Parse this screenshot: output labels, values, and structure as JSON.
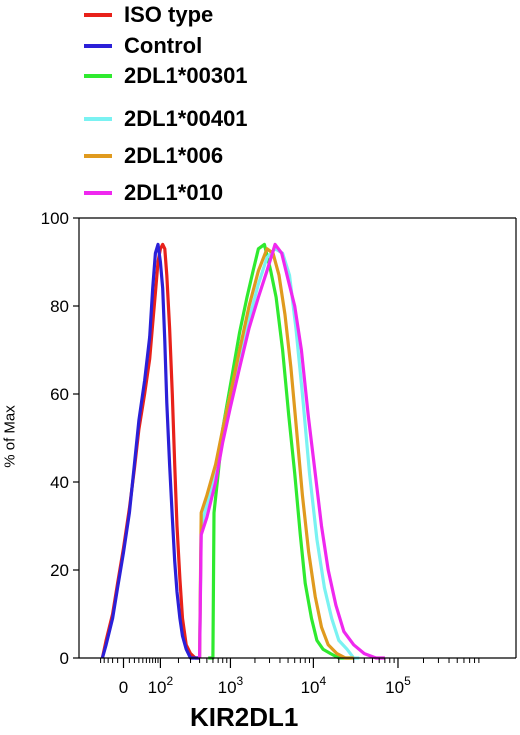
{
  "colors": {
    "iso": "#e8211a",
    "control": "#2b20d8",
    "a00301": "#2fea2f",
    "a00401": "#7af2f2",
    "a006": "#e09a1e",
    "a010": "#ef28ef"
  },
  "chart_data": {
    "type": "line",
    "title": "",
    "xlabel": "KIR2DL1",
    "ylabel": "% of Max",
    "x_scale": "biexponential",
    "xlim": [
      -60,
      300000
    ],
    "ylim": [
      0,
      100
    ],
    "yticks": [
      0,
      20,
      40,
      60,
      80,
      100
    ],
    "xticks": [
      {
        "value": 0,
        "label": "0"
      },
      {
        "value": 100,
        "label": "10",
        "sup": "2"
      },
      {
        "value": 1000,
        "label": "10",
        "sup": "3"
      },
      {
        "value": 10000,
        "label": "10",
        "sup": "4"
      },
      {
        "value": 100000,
        "label": "10",
        "sup": "5"
      }
    ],
    "legend_position": "top",
    "series": [
      {
        "name": "ISO type",
        "color_key": "iso",
        "x": [
          -45,
          -35,
          -20,
          -10,
          0,
          10,
          20,
          30,
          45,
          60,
          70,
          80,
          90,
          100,
          110,
          120,
          130,
          145,
          160,
          175,
          190,
          210,
          230,
          260,
          300,
          350,
          400
        ],
        "y": [
          0,
          4,
          10,
          17,
          25,
          34,
          43,
          52,
          60,
          68,
          76,
          83,
          90,
          93,
          94,
          93,
          87,
          75,
          60,
          44,
          30,
          18,
          9,
          3,
          1,
          0,
          0
        ]
      },
      {
        "name": "Control",
        "color_key": "control",
        "x": [
          -45,
          -35,
          -20,
          -10,
          0,
          10,
          20,
          30,
          45,
          60,
          70,
          80,
          90,
          100,
          110,
          120,
          130,
          145,
          160,
          175,
          190,
          210,
          230,
          260,
          300,
          350,
          400
        ],
        "y": [
          0,
          3,
          9,
          16,
          24,
          33,
          44,
          54,
          63,
          73,
          84,
          92,
          94,
          90,
          84,
          72,
          58,
          44,
          32,
          22,
          15,
          9,
          5,
          2,
          0,
          0,
          0
        ]
      },
      {
        "name": "2DL1*00301",
        "color_key": "a00301",
        "x": [
          520,
          600,
          620,
          700,
          800,
          1000,
          1300,
          1600,
          1900,
          2200,
          2600,
          3100,
          3600,
          4300,
          5100,
          6000,
          7000,
          8000,
          9500,
          11000,
          13000,
          16000,
          20000,
          25000,
          30000
        ],
        "y": [
          0,
          0,
          33,
          42,
          52,
          62,
          74,
          82,
          88,
          93,
          94,
          88,
          82,
          70,
          55,
          42,
          28,
          17,
          9,
          4,
          2,
          1,
          0,
          0,
          0
        ]
      },
      {
        "name": "2DL1*00401",
        "color_key": "a00401",
        "x": [
          400,
          420,
          500,
          650,
          800,
          1000,
          1300,
          1700,
          2200,
          2800,
          3500,
          4300,
          5200,
          6200,
          7400,
          9000,
          11000,
          13500,
          16500,
          20000,
          25000,
          30000,
          35000
        ],
        "y": [
          0,
          30,
          35,
          43,
          52,
          60,
          69,
          77,
          85,
          91,
          93,
          92,
          87,
          75,
          60,
          42,
          27,
          16,
          9,
          4,
          2,
          0,
          0
        ]
      },
      {
        "name": "2DL1*006",
        "color_key": "a006",
        "x": [
          400,
          420,
          500,
          650,
          800,
          1000,
          1300,
          1700,
          2200,
          2800,
          3300,
          3900,
          4600,
          5400,
          6300,
          7400,
          8800,
          10500,
          12500,
          15000,
          19000,
          24000,
          30000
        ],
        "y": [
          0,
          33,
          37,
          44,
          52,
          60,
          70,
          80,
          88,
          93,
          92,
          87,
          78,
          66,
          52,
          37,
          24,
          14,
          7,
          3,
          1,
          0,
          0
        ]
      },
      {
        "name": "2DL1*010",
        "color_key": "a010",
        "x": [
          400,
          420,
          500,
          650,
          800,
          1000,
          1300,
          1700,
          2200,
          2800,
          3500,
          4200,
          5000,
          6000,
          7200,
          8700,
          10500,
          12500,
          15000,
          18500,
          23000,
          30000,
          40000,
          55000,
          70000
        ],
        "y": [
          0,
          28,
          32,
          40,
          49,
          57,
          66,
          75,
          82,
          88,
          94,
          92,
          86,
          80,
          70,
          55,
          42,
          30,
          20,
          12,
          6,
          3,
          1,
          0,
          0
        ]
      }
    ]
  }
}
